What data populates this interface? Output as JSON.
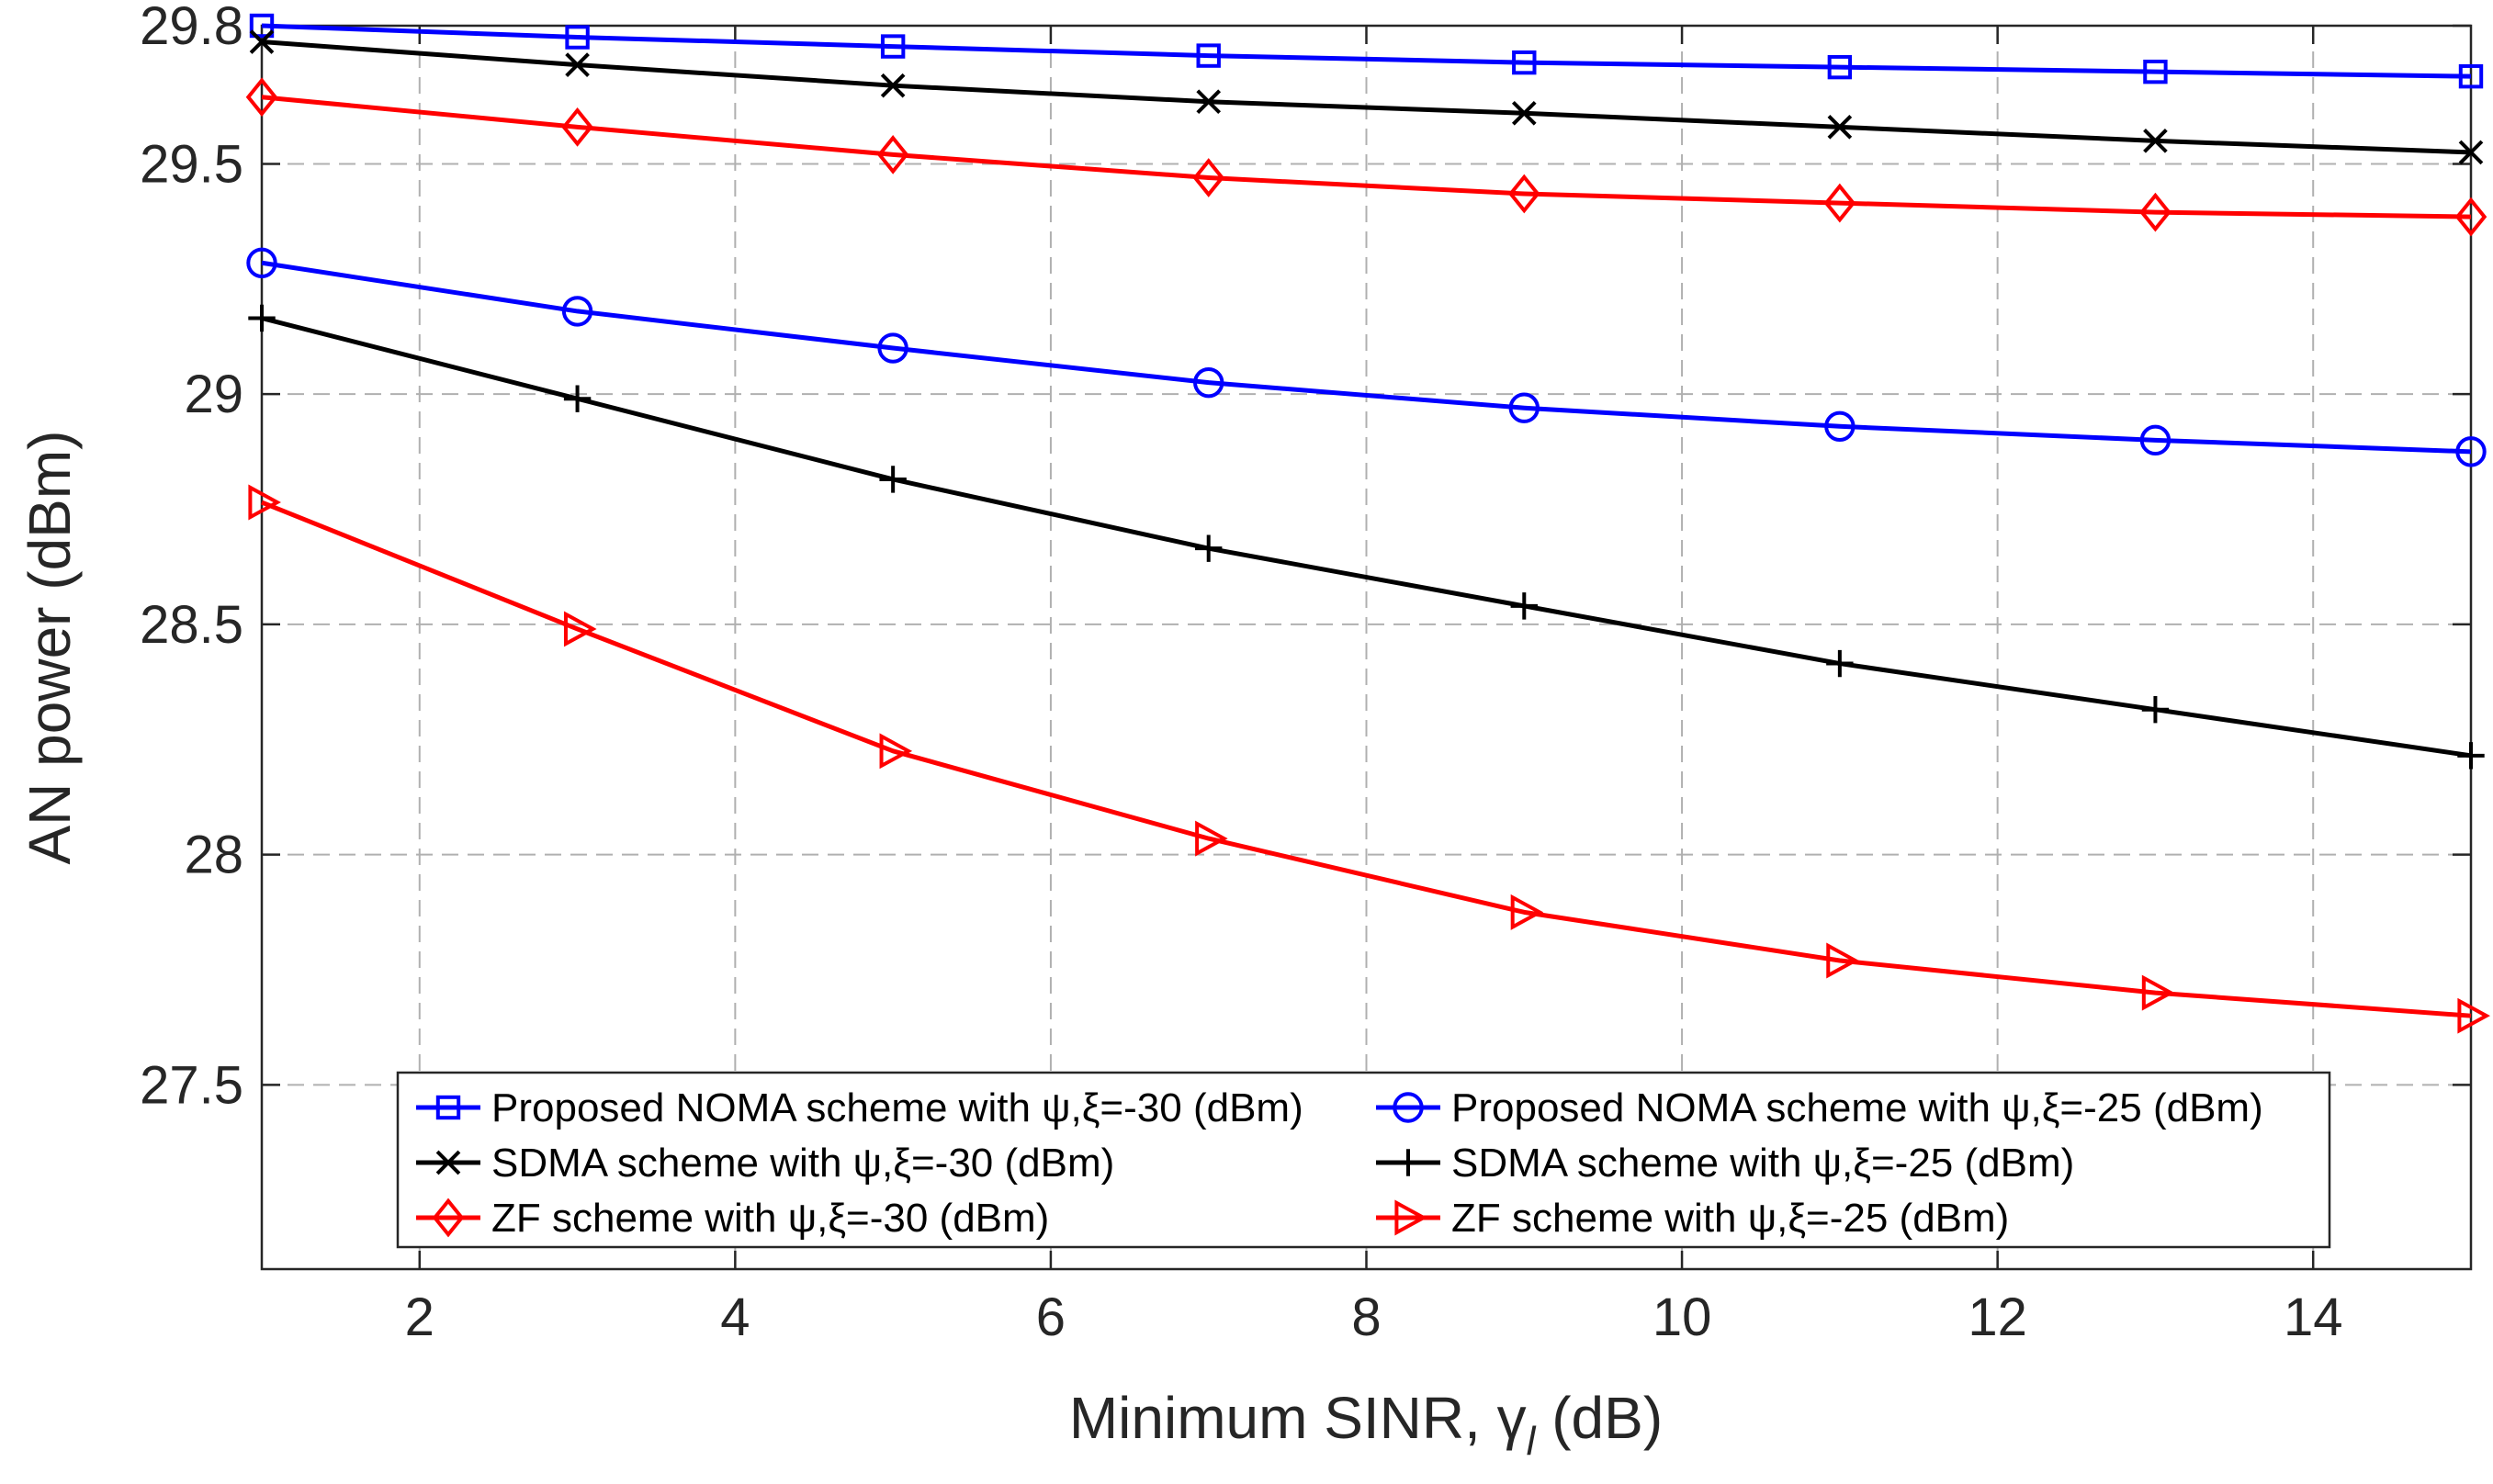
{
  "chart_data": {
    "type": "line",
    "title": "",
    "xlabel": "Minimum SINR, γ",
    "xlabel_subscript": "l",
    "xlabel_unit": " (dB)",
    "ylabel": "AN power (dBm)",
    "xlim": [
      1,
      15
    ],
    "ylim": [
      27.1,
      29.8
    ],
    "xticks": [
      2,
      4,
      6,
      8,
      10,
      12,
      14
    ],
    "yticks": [
      27.5,
      28,
      28.5,
      29,
      29.5,
      29.8
    ],
    "ytick_labels": [
      "27.5",
      "28",
      "28.5",
      "29",
      "29.5",
      "29.8"
    ],
    "grid": true,
    "legend_position": "bottom-center",
    "x": [
      1,
      3,
      5,
      7,
      9,
      11,
      13,
      15
    ],
    "series": [
      {
        "name": "Proposed NOMA scheme with ψ,ξ=-30 (dBm)",
        "color": "#0000ff",
        "marker": "square",
        "values": [
          29.8,
          29.775,
          29.755,
          29.735,
          29.72,
          29.71,
          29.7,
          29.69
        ]
      },
      {
        "name": "Proposed NOMA scheme with ψ,ξ=-25 (dBm)",
        "color": "#0000ff",
        "marker": "circle",
        "values": [
          29.285,
          29.18,
          29.1,
          29.025,
          28.97,
          28.93,
          28.9,
          28.875
        ]
      },
      {
        "name": "SDMA scheme with ψ,ξ=-30 (dBm)",
        "color": "#000000",
        "marker": "x",
        "values": [
          29.765,
          29.715,
          29.67,
          29.635,
          29.61,
          29.58,
          29.55,
          29.525
        ]
      },
      {
        "name": "SDMA scheme with ψ,ξ=-25 (dBm)",
        "color": "#000000",
        "marker": "plus",
        "values": [
          29.165,
          28.99,
          28.815,
          28.665,
          28.54,
          28.415,
          28.315,
          28.215
        ]
      },
      {
        "name": "ZF scheme with ψ,ξ=-30 (dBm)",
        "color": "#ff0000",
        "marker": "diamond",
        "values": [
          29.645,
          29.58,
          29.52,
          29.47,
          29.435,
          29.415,
          29.395,
          29.385
        ]
      },
      {
        "name": "ZF scheme with ψ,ξ=-25 (dBm)",
        "color": "#ff0000",
        "marker": "triangle-right",
        "values": [
          28.765,
          28.49,
          28.225,
          28.035,
          27.875,
          27.77,
          27.7,
          27.65
        ]
      }
    ]
  }
}
